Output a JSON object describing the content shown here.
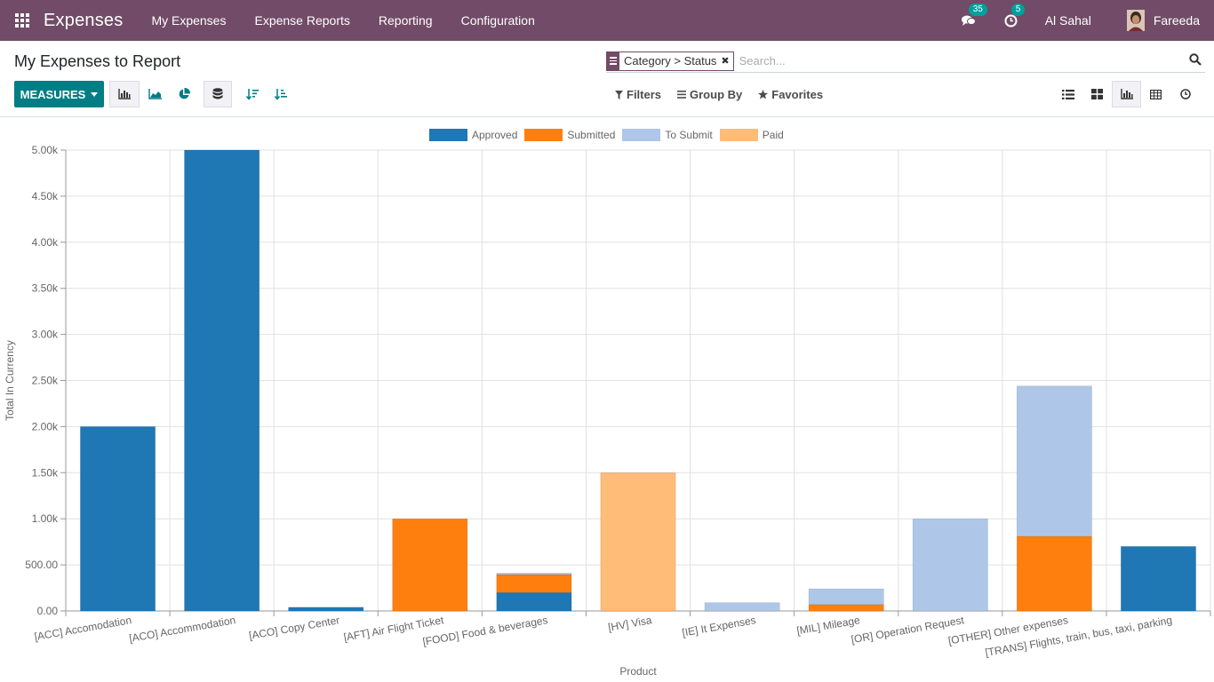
{
  "navbar": {
    "app_title": "Expenses",
    "menu": [
      "My Expenses",
      "Expense Reports",
      "Reporting",
      "Configuration"
    ],
    "messages_count": "35",
    "activities_count": "5",
    "company": "Al Sahal",
    "user": "Fareeda"
  },
  "control_panel": {
    "title": "My Expenses to Report",
    "facet": "Category > Status",
    "search_placeholder": "Search...",
    "measures_label": "MEASURES",
    "filters_label": "Filters",
    "groupby_label": "Group By",
    "favorites_label": "Favorites"
  },
  "colors": {
    "navbar": "#714b67",
    "primary": "#017e84",
    "approved": "#1f77b4",
    "submitted": "#ff7f0e",
    "to_submit": "#aec7e8",
    "paid": "#ffbb78"
  },
  "chart_data": {
    "type": "bar",
    "stacked": true,
    "xlabel": "Product",
    "ylabel": "Total In Currency",
    "ylim": [
      0,
      5000
    ],
    "yticks": [
      "0.00",
      "500.00",
      "1.00k",
      "1.50k",
      "2.00k",
      "2.50k",
      "3.00k",
      "3.50k",
      "4.00k",
      "4.50k",
      "5.00k"
    ],
    "legend_position": "top-center",
    "categories": [
      "[ACC] Accomodation",
      "[ACO] Accommodation",
      "[ACO] Copy Center",
      "[AFT] Air Flight Ticket",
      "[FOOD] Food & beverages",
      "[HV] Visa",
      "[IE] It Expenses",
      "[MIL] Mileage",
      "[OR] Operation Request",
      "[OTHER] Other expenses",
      "[TRANS] Flights, train, bus, taxi, parking"
    ],
    "series": [
      {
        "name": "Approved",
        "color": "#1f77b4",
        "values": [
          2000,
          5000,
          40,
          0,
          200,
          0,
          0,
          0,
          0,
          0,
          700
        ]
      },
      {
        "name": "Submitted",
        "color": "#ff7f0e",
        "values": [
          0,
          0,
          0,
          1000,
          195,
          0,
          0,
          70,
          0,
          810,
          0
        ]
      },
      {
        "name": "To Submit",
        "color": "#aec7e8",
        "values": [
          0,
          0,
          0,
          0,
          15,
          0,
          90,
          170,
          1000,
          1630,
          0
        ]
      },
      {
        "name": "Paid",
        "color": "#ffbb78",
        "values": [
          0,
          0,
          0,
          0,
          0,
          1500,
          0,
          0,
          0,
          0,
          0
        ]
      }
    ]
  }
}
